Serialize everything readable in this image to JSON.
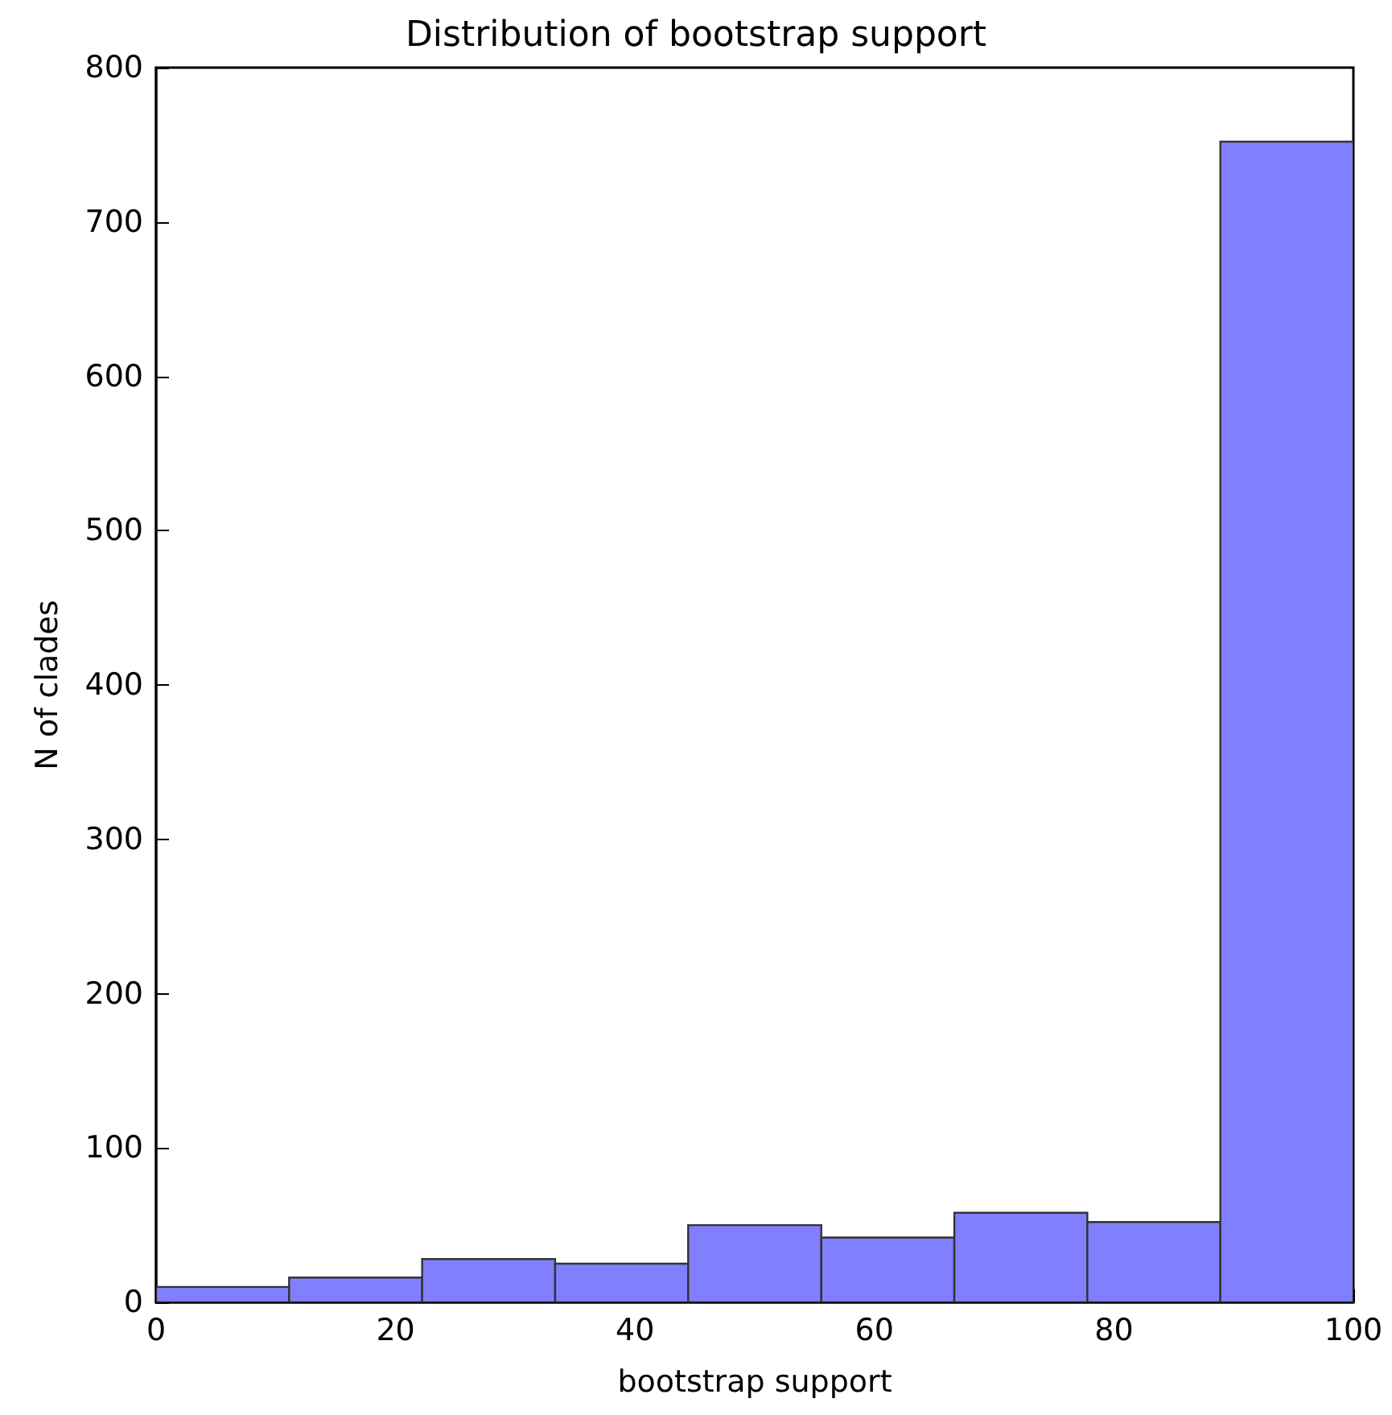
{
  "chart_data": {
    "type": "histogram",
    "title": "Distribution of bootstrap support",
    "xlabel": "bootstrap support",
    "ylabel": "N of clades",
    "bins": [
      0,
      11.11,
      22.22,
      33.33,
      44.44,
      55.56,
      66.67,
      77.78,
      88.89,
      100
    ],
    "values": [
      10,
      16,
      28,
      25,
      50,
      42,
      58,
      52,
      752
    ],
    "color": "#8080ff",
    "xlim": [
      0,
      100
    ],
    "xticks": [
      0,
      20,
      40,
      60,
      80,
      100
    ],
    "ylim": [
      0,
      800
    ],
    "yticks": [
      0,
      100,
      200,
      300,
      400,
      500,
      600,
      700,
      800
    ],
    "grid": false
  }
}
